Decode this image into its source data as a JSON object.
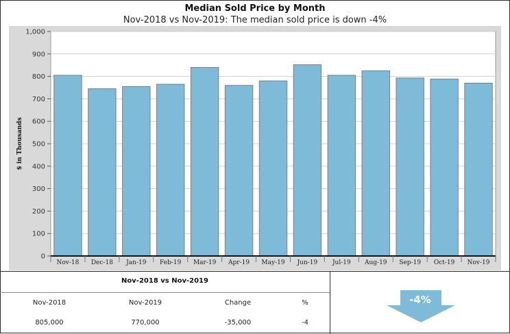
{
  "chart_data": {
    "type": "bar",
    "title": "Median Sold Price by Month",
    "subtitle": "Nov-2018 vs Nov-2019: The median sold price is down -4%",
    "ylabel": "$ in Thousands",
    "categories": [
      "Nov-18",
      "Dec-18",
      "Jan-19",
      "Feb-19",
      "Mar-19",
      "Apr-19",
      "May-19",
      "Jun-19",
      "Jul-19",
      "Aug-19",
      "Sep-19",
      "Oct-19",
      "Nov-19"
    ],
    "values": [
      805,
      745,
      755,
      765,
      840,
      760,
      780,
      852,
      805,
      825,
      793,
      788,
      770
    ],
    "ylim": [
      0,
      1000
    ],
    "yticks": [
      "0",
      "100",
      "200",
      "300",
      "400",
      "500",
      "600",
      "700",
      "800",
      "900",
      "1,000"
    ],
    "grid": true,
    "bar_color": "#7dbbd9",
    "plot_background": "#ffffff",
    "panel_background": "#d9d9d9"
  },
  "comparison": {
    "title": "Nov-2018 vs Nov-2019",
    "headers": [
      "Nov-2018",
      "Nov-2019",
      "Change",
      "%"
    ],
    "values": [
      "805,000",
      "770,000",
      "-35,000",
      "-4"
    ]
  },
  "change_indicator": {
    "value": "-4%",
    "icon": "down-arrow-icon",
    "color": "#7dbbd9"
  }
}
